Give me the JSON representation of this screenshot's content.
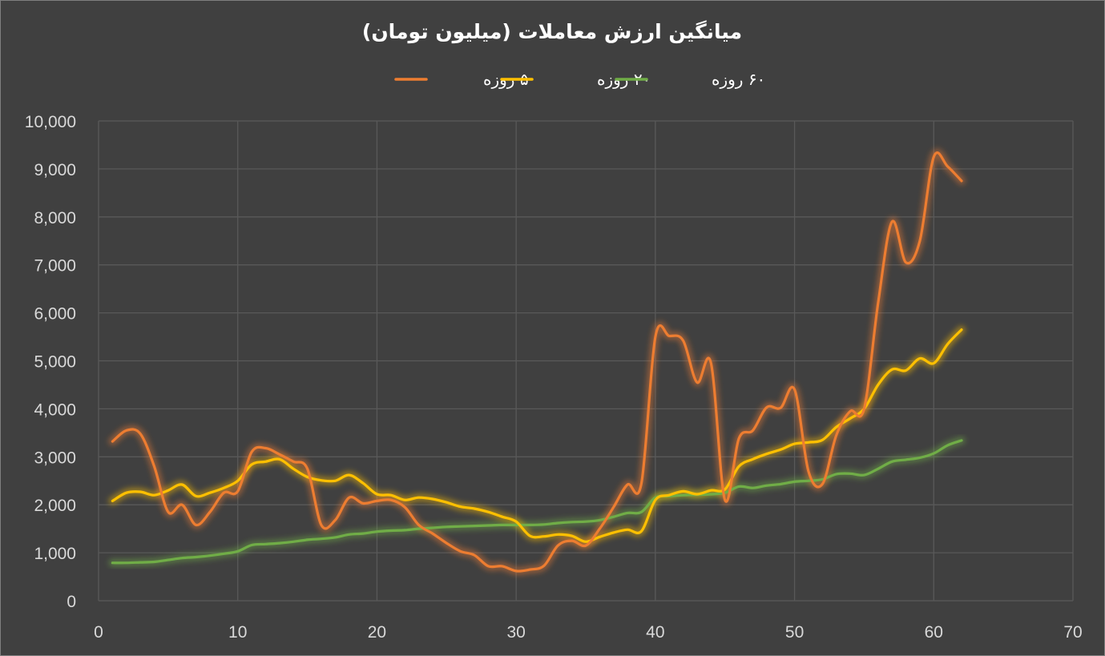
{
  "chart_data": {
    "type": "line",
    "title": "میانگین ارزش معاملات (میلیون تومان)",
    "xlabel": "",
    "ylabel": "",
    "xlim": [
      0,
      70
    ],
    "ylim": [
      0,
      10000
    ],
    "x_ticks": [
      "0",
      "10",
      "20",
      "30",
      "40",
      "50",
      "60",
      "70"
    ],
    "y_ticks": [
      "0",
      "1,000",
      "2,000",
      "3,000",
      "4,000",
      "5,000",
      "6,000",
      "7,000",
      "8,000",
      "9,000",
      "10,000"
    ],
    "grid": true,
    "legend_position": "top",
    "series": [
      {
        "name": "۵ روزه",
        "color": "#ED7D31",
        "x": [
          1,
          2,
          3,
          4,
          5,
          6,
          7,
          8,
          9,
          10,
          11,
          12,
          13,
          14,
          15,
          16,
          17,
          18,
          19,
          20,
          21,
          22,
          23,
          24,
          25,
          26,
          27,
          28,
          29,
          30,
          31,
          32,
          33,
          34,
          35,
          36,
          37,
          38,
          39,
          40,
          41,
          42,
          43,
          44,
          45,
          46,
          47,
          48,
          49,
          50,
          51,
          52,
          53,
          54,
          55,
          56,
          57,
          58,
          59,
          60,
          61,
          62
        ],
        "values": [
          3320,
          3550,
          3480,
          2800,
          1850,
          2000,
          1580,
          1850,
          2250,
          2280,
          3100,
          3180,
          3050,
          2900,
          2750,
          1580,
          1680,
          2150,
          2030,
          2080,
          2100,
          1950,
          1580,
          1400,
          1200,
          1030,
          950,
          720,
          720,
          620,
          650,
          730,
          1150,
          1250,
          1150,
          1500,
          1950,
          2420,
          2450,
          5500,
          5520,
          5420,
          4550,
          4950,
          2100,
          3380,
          3550,
          4030,
          4020,
          4400,
          2700,
          2430,
          3450,
          3950,
          4000,
          6200,
          7900,
          7050,
          7500,
          9250,
          9050,
          8750
        ]
      },
      {
        "name": "۲۰ روزه",
        "color": "#FFC000",
        "x": [
          1,
          2,
          3,
          4,
          5,
          6,
          7,
          8,
          9,
          10,
          11,
          12,
          13,
          14,
          15,
          16,
          17,
          18,
          19,
          20,
          21,
          22,
          23,
          24,
          25,
          26,
          27,
          28,
          29,
          30,
          31,
          32,
          33,
          34,
          35,
          36,
          37,
          38,
          39,
          40,
          41,
          42,
          43,
          44,
          45,
          46,
          47,
          48,
          49,
          50,
          51,
          52,
          53,
          54,
          55,
          56,
          57,
          58,
          59,
          60,
          61,
          62
        ],
        "values": [
          2080,
          2250,
          2270,
          2200,
          2300,
          2420,
          2180,
          2250,
          2350,
          2500,
          2840,
          2900,
          2950,
          2750,
          2580,
          2510,
          2500,
          2620,
          2450,
          2220,
          2200,
          2100,
          2150,
          2120,
          2050,
          1960,
          1920,
          1850,
          1750,
          1650,
          1350,
          1340,
          1380,
          1350,
          1230,
          1330,
          1420,
          1480,
          1450,
          2100,
          2200,
          2280,
          2220,
          2300,
          2320,
          2800,
          2950,
          3060,
          3150,
          3270,
          3300,
          3350,
          3620,
          3800,
          4000,
          4500,
          4820,
          4800,
          5050,
          4950,
          5350,
          5650
        ]
      },
      {
        "name": "۶۰ روزه",
        "color": "#70AD47",
        "x": [
          1,
          2,
          3,
          4,
          5,
          6,
          7,
          8,
          9,
          10,
          11,
          12,
          13,
          14,
          15,
          16,
          17,
          18,
          19,
          20,
          21,
          22,
          23,
          24,
          25,
          26,
          27,
          28,
          29,
          30,
          31,
          32,
          33,
          34,
          35,
          36,
          37,
          38,
          39,
          40,
          41,
          42,
          43,
          44,
          45,
          46,
          47,
          48,
          49,
          50,
          51,
          52,
          53,
          54,
          55,
          56,
          57,
          58,
          59,
          60,
          61,
          62
        ],
        "values": [
          790,
          790,
          800,
          810,
          850,
          890,
          910,
          940,
          980,
          1030,
          1160,
          1180,
          1200,
          1230,
          1270,
          1290,
          1320,
          1380,
          1400,
          1440,
          1460,
          1470,
          1500,
          1520,
          1540,
          1550,
          1560,
          1570,
          1580,
          1580,
          1580,
          1590,
          1620,
          1640,
          1650,
          1680,
          1750,
          1830,
          1850,
          2150,
          2180,
          2200,
          2210,
          2220,
          2250,
          2380,
          2350,
          2400,
          2430,
          2480,
          2500,
          2530,
          2640,
          2650,
          2620,
          2750,
          2900,
          2940,
          2980,
          3070,
          3240,
          3340
        ]
      }
    ]
  }
}
